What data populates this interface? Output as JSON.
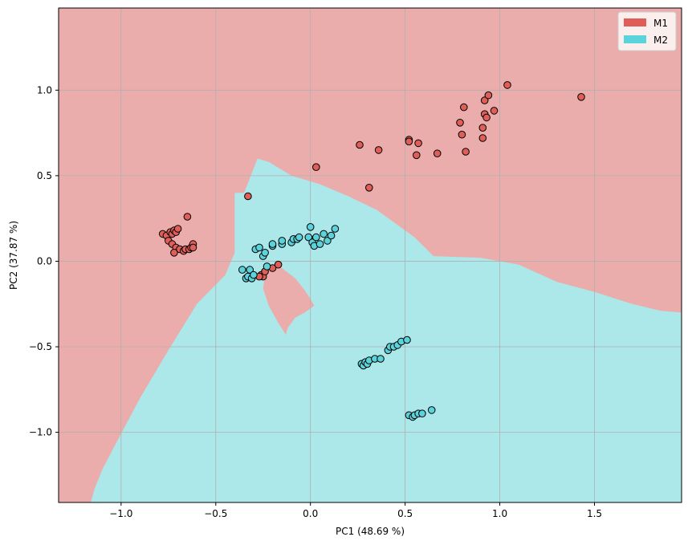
{
  "chart_data": {
    "type": "scatter",
    "title": "",
    "xlabel": "PC1 (48.69 %)",
    "ylabel": "PC2 (37.87 %)",
    "xlim": [
      -1.33,
      1.96
    ],
    "ylim": [
      -1.41,
      1.48
    ],
    "x_ticks": [
      -1.0,
      -0.5,
      0.0,
      0.5,
      1.0,
      1.5
    ],
    "x_tick_labels": [
      "−1.0",
      "−0.5",
      "0.0",
      "0.5",
      "1.0",
      "1.5"
    ],
    "y_ticks": [
      -1.0,
      -0.5,
      0.0,
      0.5,
      1.0
    ],
    "y_tick_labels": [
      "−1.0",
      "−0.5",
      "0.0",
      "0.5",
      "1.0"
    ],
    "grid": true,
    "legend_position": "top-right",
    "background_regions": {
      "colors": {
        "M1": "#ebadab",
        "M2": "#ace7ea"
      },
      "m2_region_outline": [
        [
          -1.16,
          -1.41
        ],
        [
          -1.14,
          -1.33
        ],
        [
          -1.1,
          -1.22
        ],
        [
          -1.02,
          -1.05
        ],
        [
          -0.9,
          -0.8
        ],
        [
          -0.75,
          -0.52
        ],
        [
          -0.6,
          -0.25
        ],
        [
          -0.45,
          -0.08
        ],
        [
          -0.4,
          0.05
        ],
        [
          -0.4,
          0.4
        ],
        [
          -0.35,
          0.4
        ],
        [
          -0.28,
          0.6
        ],
        [
          -0.22,
          0.58
        ],
        [
          -0.1,
          0.5
        ],
        [
          0.05,
          0.45
        ],
        [
          0.2,
          0.38
        ],
        [
          0.35,
          0.3
        ],
        [
          0.55,
          0.14
        ],
        [
          0.65,
          0.03
        ],
        [
          0.9,
          0.02
        ],
        [
          1.1,
          -0.02
        ],
        [
          1.3,
          -0.12
        ],
        [
          1.5,
          -0.18
        ],
        [
          1.7,
          -0.25
        ],
        [
          1.85,
          -0.29
        ],
        [
          1.96,
          -0.3
        ],
        [
          1.96,
          -1.41
        ]
      ],
      "m1_island_outline": [
        [
          -0.22,
          -0.02
        ],
        [
          -0.15,
          -0.04
        ],
        [
          -0.08,
          -0.1
        ],
        [
          -0.03,
          -0.17
        ],
        [
          0.0,
          -0.22
        ],
        [
          0.02,
          -0.26
        ],
        [
          -0.03,
          -0.3
        ],
        [
          -0.08,
          -0.33
        ],
        [
          -0.12,
          -0.39
        ],
        [
          -0.13,
          -0.43
        ],
        [
          -0.17,
          -0.36
        ],
        [
          -0.22,
          -0.26
        ],
        [
          -0.25,
          -0.16
        ],
        [
          -0.24,
          -0.08
        ]
      ]
    },
    "series": [
      {
        "name": "M1",
        "color": "#e05e58",
        "points": [
          [
            -0.78,
            0.16
          ],
          [
            -0.76,
            0.15
          ],
          [
            -0.75,
            0.12
          ],
          [
            -0.74,
            0.17
          ],
          [
            -0.73,
            0.16
          ],
          [
            -0.72,
            0.18
          ],
          [
            -0.71,
            0.17
          ],
          [
            -0.7,
            0.19
          ],
          [
            -0.73,
            0.1
          ],
          [
            -0.71,
            0.08
          ],
          [
            -0.72,
            0.05
          ],
          [
            -0.69,
            0.07
          ],
          [
            -0.67,
            0.06
          ],
          [
            -0.66,
            0.07
          ],
          [
            -0.64,
            0.07
          ],
          [
            -0.63,
            0.08
          ],
          [
            -0.62,
            0.1
          ],
          [
            -0.62,
            0.08
          ],
          [
            -0.65,
            0.26
          ],
          [
            -0.33,
            0.38
          ],
          [
            0.03,
            0.55
          ],
          [
            0.26,
            0.68
          ],
          [
            0.31,
            0.43
          ],
          [
            0.36,
            0.65
          ],
          [
            0.52,
            0.71
          ],
          [
            0.52,
            0.7
          ],
          [
            0.56,
            0.62
          ],
          [
            0.57,
            0.69
          ],
          [
            0.67,
            0.63
          ],
          [
            0.79,
            0.81
          ],
          [
            0.8,
            0.74
          ],
          [
            0.81,
            0.9
          ],
          [
            0.82,
            0.64
          ],
          [
            0.91,
            0.78
          ],
          [
            0.91,
            0.72
          ],
          [
            0.92,
            0.86
          ],
          [
            0.92,
            0.94
          ],
          [
            0.93,
            0.84
          ],
          [
            0.94,
            0.97
          ],
          [
            0.97,
            0.88
          ],
          [
            1.04,
            1.03
          ],
          [
            1.43,
            0.96
          ],
          [
            -0.26,
            -0.08
          ],
          [
            -0.25,
            -0.09
          ],
          [
            -0.24,
            -0.06
          ],
          [
            -0.2,
            -0.04
          ],
          [
            -0.17,
            -0.02
          ],
          [
            -0.27,
            -0.09
          ]
        ]
      },
      {
        "name": "M2",
        "color": "#5bd3db",
        "points": [
          [
            -0.36,
            -0.05
          ],
          [
            -0.34,
            -0.1
          ],
          [
            -0.33,
            -0.09
          ],
          [
            -0.32,
            -0.05
          ],
          [
            -0.31,
            -0.1
          ],
          [
            -0.3,
            -0.08
          ],
          [
            -0.29,
            0.07
          ],
          [
            -0.27,
            0.08
          ],
          [
            -0.25,
            0.03
          ],
          [
            -0.24,
            0.05
          ],
          [
            -0.23,
            -0.03
          ],
          [
            -0.2,
            0.09
          ],
          [
            -0.2,
            0.1
          ],
          [
            -0.15,
            0.1
          ],
          [
            -0.15,
            0.12
          ],
          [
            -0.1,
            0.11
          ],
          [
            -0.09,
            0.13
          ],
          [
            -0.07,
            0.13
          ],
          [
            -0.06,
            0.14
          ],
          [
            -0.01,
            0.14
          ],
          [
            0.0,
            0.2
          ],
          [
            0.01,
            0.11
          ],
          [
            0.02,
            0.09
          ],
          [
            0.03,
            0.14
          ],
          [
            0.05,
            0.1
          ],
          [
            0.07,
            0.16
          ],
          [
            0.09,
            0.12
          ],
          [
            0.11,
            0.15
          ],
          [
            0.13,
            0.19
          ],
          [
            0.27,
            -0.6
          ],
          [
            0.28,
            -0.61
          ],
          [
            0.29,
            -0.59
          ],
          [
            0.3,
            -0.6
          ],
          [
            0.31,
            -0.58
          ],
          [
            0.34,
            -0.57
          ],
          [
            0.37,
            -0.57
          ],
          [
            0.41,
            -0.52
          ],
          [
            0.42,
            -0.5
          ],
          [
            0.44,
            -0.5
          ],
          [
            0.46,
            -0.49
          ],
          [
            0.48,
            -0.47
          ],
          [
            0.51,
            -0.46
          ],
          [
            0.52,
            -0.9
          ],
          [
            0.54,
            -0.91
          ],
          [
            0.55,
            -0.9
          ],
          [
            0.57,
            -0.89
          ],
          [
            0.59,
            -0.89
          ],
          [
            0.64,
            -0.87
          ]
        ]
      }
    ]
  }
}
